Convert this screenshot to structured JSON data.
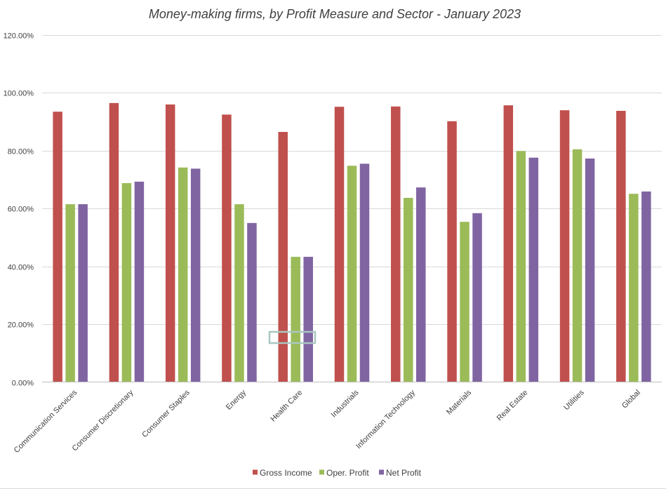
{
  "chart_data": {
    "type": "bar",
    "title": "Money-making firms, by Profit Measure and Sector - January 2023",
    "xlabel": "",
    "ylabel": "",
    "ylim": [
      0,
      1.2
    ],
    "y_tick_values": [
      0,
      0.2,
      0.4,
      0.6,
      0.8,
      1.0,
      1.2
    ],
    "y_tick_labels": [
      "0.00%",
      "20.00%",
      "40.00%",
      "60.00%",
      "80.00%",
      "100.00%",
      "120.00%"
    ],
    "grid": true,
    "legend_position": "bottom",
    "categories": [
      "Communication Services",
      "Consumer Discretionary",
      "Consumer Staples",
      "Energy",
      "Health Care",
      "Industrials",
      "Information Technology",
      "Materials",
      "Real Estate",
      "Utilities",
      "Global"
    ],
    "series": [
      {
        "name": "Gross Income",
        "color": "#c0504d",
        "values": [
          0.935,
          0.965,
          0.96,
          0.925,
          0.865,
          0.952,
          0.953,
          0.902,
          0.957,
          0.94,
          0.938
        ]
      },
      {
        "name": "Oper. Profit",
        "color": "#9bbb59",
        "values": [
          0.615,
          0.688,
          0.742,
          0.615,
          0.433,
          0.748,
          0.637,
          0.554,
          0.799,
          0.805,
          0.651
        ]
      },
      {
        "name": "Net Profit",
        "color": "#8064a2",
        "values": [
          0.615,
          0.693,
          0.738,
          0.55,
          0.433,
          0.755,
          0.673,
          0.584,
          0.776,
          0.773,
          0.659
        ]
      }
    ]
  }
}
